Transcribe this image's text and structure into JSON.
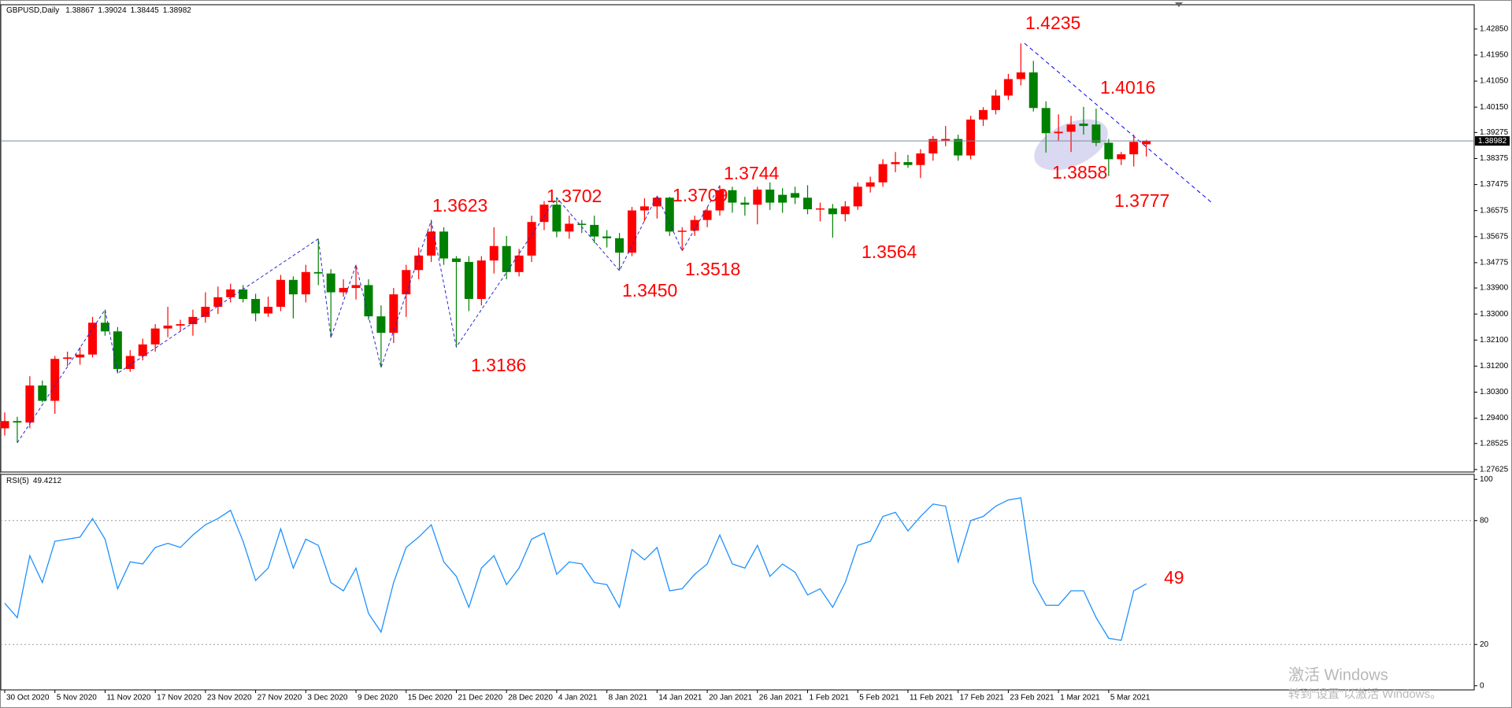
{
  "chart_data": [
    {
      "type": "candlestick",
      "title": "GBPUSD,Daily",
      "categories": [
        "30 Oct 2020",
        null,
        null,
        null,
        "5 Nov 2020",
        null,
        null,
        null,
        "11 Nov 2020",
        null,
        null,
        null,
        "17 Nov 2020",
        null,
        null,
        null,
        "23 Nov 2020",
        null,
        null,
        null,
        "27 Nov 2020",
        null,
        null,
        null,
        "3 Dec 2020",
        null,
        null,
        null,
        "9 Dec 2020",
        null,
        null,
        null,
        "15 Dec 2020",
        null,
        null,
        null,
        "21 Dec 2020",
        null,
        null,
        null,
        "28 Dec 2020",
        null,
        null,
        null,
        "4 Jan 2021",
        null,
        null,
        null,
        "8 Jan 2021",
        null,
        null,
        null,
        "14 Jan 2021",
        null,
        null,
        null,
        "20 Jan 2021",
        null,
        null,
        null,
        "26 Jan 2021",
        null,
        null,
        null,
        "1 Feb 2021",
        null,
        null,
        null,
        "5 Feb 2021",
        null,
        null,
        null,
        "11 Feb 2021",
        null,
        null,
        null,
        "17 Feb 2021",
        null,
        null,
        null,
        "23 Feb 2021",
        null,
        null,
        null,
        "1 Mar 2021",
        null,
        null,
        null,
        "5 Mar 2021",
        null,
        null,
        null
      ],
      "open": [
        1.2905,
        1.293,
        1.2925,
        1.3053,
        1.3,
        1.3145,
        1.315,
        1.316,
        1.327,
        1.324,
        1.311,
        1.3155,
        1.3195,
        1.325,
        1.326,
        1.3265,
        1.329,
        1.3325,
        1.3358,
        1.3385,
        1.3352,
        1.3302,
        1.3325,
        1.3418,
        1.3368,
        1.3445,
        1.344,
        1.3375,
        1.339,
        1.34,
        1.3292,
        1.3235,
        1.3368,
        1.3452,
        1.3502,
        1.3585,
        1.3492,
        1.348,
        1.3352,
        1.3485,
        1.3535,
        1.3445,
        1.3502,
        1.3618,
        1.3678,
        1.3585,
        1.3612,
        1.3608,
        1.3568,
        1.3562,
        1.3512,
        1.3658,
        1.3672,
        1.3702,
        1.3585,
        1.3588,
        1.3625,
        1.3658,
        1.3728,
        1.3685,
        1.3678,
        1.373,
        1.3712,
        1.3718,
        1.3702,
        1.3662,
        1.3665,
        1.3645,
        1.3672,
        1.374,
        1.3755,
        1.3818,
        1.3825,
        1.3815,
        1.3855,
        1.39,
        1.3905,
        1.3848,
        1.3972,
        1.4005,
        1.4055,
        1.4112,
        1.4135,
        1.4012,
        1.3925,
        1.393,
        1.3958,
        1.3955,
        1.3892,
        1.3835,
        1.3852,
        1.38867
      ],
      "high": [
        1.296,
        1.2945,
        1.3085,
        1.307,
        1.3155,
        1.317,
        1.3185,
        1.329,
        1.3315,
        1.3255,
        1.3175,
        1.3215,
        1.3265,
        1.3325,
        1.328,
        1.3315,
        1.3375,
        1.3395,
        1.3405,
        1.34,
        1.337,
        1.336,
        1.3435,
        1.343,
        1.347,
        1.356,
        1.3455,
        1.342,
        1.347,
        1.342,
        1.333,
        1.339,
        1.347,
        1.353,
        1.3623,
        1.36,
        1.35,
        1.35,
        1.35,
        1.36,
        1.357,
        1.3525,
        1.364,
        1.369,
        1.3702,
        1.364,
        1.3625,
        1.364,
        1.359,
        1.358,
        1.367,
        1.37,
        1.3709,
        1.3705,
        1.36,
        1.364,
        1.367,
        1.3744,
        1.374,
        1.3705,
        1.374,
        1.3755,
        1.3735,
        1.374,
        1.3745,
        1.3685,
        1.368,
        1.369,
        1.3755,
        1.3775,
        1.3835,
        1.386,
        1.385,
        1.387,
        1.3915,
        1.395,
        1.392,
        1.3985,
        1.4015,
        1.4075,
        1.413,
        1.4235,
        1.4175,
        1.4035,
        1.399,
        1.3985,
        1.4016,
        1.401,
        1.3905,
        1.386,
        1.392,
        1.39024
      ],
      "low": [
        1.288,
        1.2855,
        1.2905,
        1.2995,
        1.2955,
        1.312,
        1.3125,
        1.315,
        1.3225,
        1.3095,
        1.31,
        1.314,
        1.317,
        1.322,
        1.324,
        1.3225,
        1.327,
        1.33,
        1.334,
        1.334,
        1.3275,
        1.329,
        1.331,
        1.3285,
        1.334,
        1.34,
        1.3218,
        1.336,
        1.335,
        1.328,
        1.3115,
        1.32,
        1.329,
        1.342,
        1.348,
        1.347,
        1.3186,
        1.331,
        1.333,
        1.344,
        1.342,
        1.343,
        1.348,
        1.359,
        1.3565,
        1.356,
        1.358,
        1.3545,
        1.353,
        1.345,
        1.35,
        1.362,
        1.363,
        1.357,
        1.3518,
        1.357,
        1.36,
        1.364,
        1.365,
        1.364,
        1.361,
        1.366,
        1.365,
        1.368,
        1.3645,
        1.362,
        1.3564,
        1.362,
        1.366,
        1.372,
        1.374,
        1.379,
        1.3805,
        1.377,
        1.383,
        1.388,
        1.383,
        1.3835,
        1.395,
        1.399,
        1.404,
        1.409,
        1.4,
        1.3858,
        1.39,
        1.386,
        1.392,
        1.388,
        1.3777,
        1.3815,
        1.381,
        1.38445
      ],
      "close": [
        1.293,
        1.2925,
        1.3053,
        1.3,
        1.3145,
        1.315,
        1.316,
        1.327,
        1.324,
        1.311,
        1.3155,
        1.3195,
        1.325,
        1.326,
        1.3265,
        1.329,
        1.3325,
        1.3358,
        1.3385,
        1.3352,
        1.3302,
        1.3325,
        1.3418,
        1.3368,
        1.3445,
        1.344,
        1.3375,
        1.339,
        1.34,
        1.3292,
        1.3235,
        1.3368,
        1.3452,
        1.3502,
        1.3585,
        1.3492,
        1.348,
        1.3352,
        1.3485,
        1.3535,
        1.3445,
        1.3502,
        1.3618,
        1.3678,
        1.3585,
        1.3612,
        1.3608,
        1.3568,
        1.3562,
        1.3512,
        1.3658,
        1.3672,
        1.3702,
        1.3585,
        1.3588,
        1.3625,
        1.3658,
        1.3728,
        1.3685,
        1.3678,
        1.373,
        1.3685,
        1.3685,
        1.3702,
        1.3662,
        1.3665,
        1.3645,
        1.3672,
        1.374,
        1.3755,
        1.3818,
        1.3825,
        1.3815,
        1.3855,
        1.3905,
        1.3905,
        1.3848,
        1.3972,
        1.4005,
        1.4055,
        1.4112,
        1.4135,
        1.4012,
        1.3925,
        1.393,
        1.3955,
        1.395,
        1.3892,
        1.3835,
        1.3852,
        1.3895,
        1.38982
      ],
      "up_color": "#ff0000",
      "down_color": "#008000",
      "ylim": [
        1.2754,
        1.4369
      ],
      "yticks": [
        1.27625,
        1.28525,
        {
          "value": 1.294,
          "label": "1.29400"
        },
        {
          "value": 1.303,
          "label": "1.30300"
        },
        {
          "value": 1.312,
          "label": "1.31200"
        },
        {
          "value": 1.321,
          "label": "1.32100"
        },
        {
          "value": 1.33,
          "label": "1.33000"
        },
        {
          "value": 1.339,
          "label": "1.33900"
        },
        1.34775,
        1.35675,
        1.36575,
        1.37475,
        1.38375,
        1.39275,
        {
          "value": 1.4015,
          "label": "1.40150"
        },
        {
          "value": 1.4105,
          "label": "1.41050"
        },
        {
          "value": 1.4195,
          "label": "1.41950"
        },
        {
          "value": 1.4285,
          "label": "1.42850"
        }
      ],
      "annotations": [
        "1.3623",
        "1.3186",
        "1.3702",
        "1.3450",
        "1.3709",
        "1.3518",
        "1.3744",
        "1.3564",
        "1.4235",
        "1.4016",
        "1.3858",
        "1.3777"
      ],
      "annotation_color": "#ff0000"
    },
    {
      "type": "line",
      "title": "RSI(5)",
      "color": "#1e90ff",
      "values": [
        40,
        33,
        63,
        50,
        70,
        71,
        72,
        81,
        71,
        47,
        60,
        59,
        67,
        69,
        67,
        73,
        78,
        81,
        85,
        70,
        51,
        57,
        76,
        57,
        71,
        68,
        50,
        46,
        57,
        35,
        26,
        50,
        67,
        72,
        78,
        60,
        53,
        38,
        57,
        63,
        49,
        57,
        71,
        74,
        54,
        60,
        59,
        50,
        49,
        38,
        66,
        61,
        67,
        46,
        47,
        54,
        59,
        73,
        59,
        57,
        68,
        53,
        59,
        55,
        44,
        47,
        38,
        50,
        68,
        70,
        82,
        84,
        75,
        82,
        88,
        87,
        60,
        80,
        82,
        87,
        90,
        91,
        50,
        39,
        39,
        46,
        46,
        33,
        23,
        22,
        46,
        49.4212
      ],
      "ylim": [
        -2,
        102.4
      ],
      "yticks": [
        0,
        20,
        80,
        100
      ],
      "levels": [
        20,
        80
      ],
      "annotations": [
        "49"
      ],
      "annotation_color": "#ff0000"
    }
  ],
  "watermark": {
    "line1": "激活 Windows",
    "line2": "转到“设置”以激活 Windows。"
  }
}
